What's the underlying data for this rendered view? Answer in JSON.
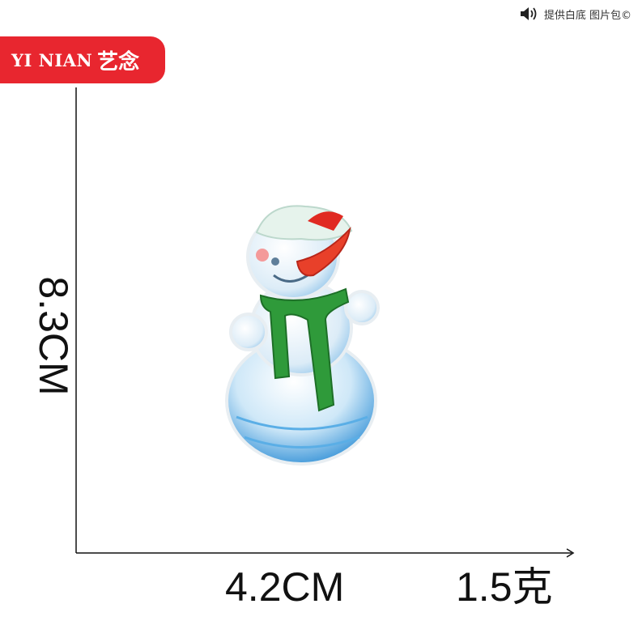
{
  "watermark": {
    "text": "提供白底 图片包©",
    "icon": "speaker-icon"
  },
  "brand": {
    "latin": "YI NIAN",
    "chinese": "艺念",
    "color": "#e8262f"
  },
  "dimensions": {
    "height": "8.3CM",
    "width": "4.2CM",
    "weight": "1.5克"
  },
  "product": {
    "image": "snowman-embroidered-patch"
  }
}
